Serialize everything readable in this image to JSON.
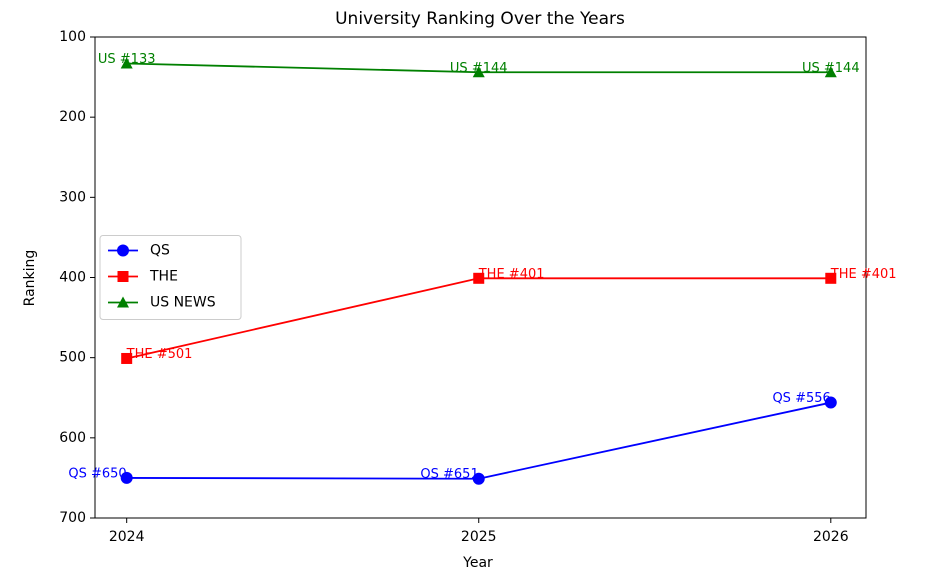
{
  "chart_data": {
    "type": "line",
    "title": "University Ranking Over the Years",
    "x_label": "Year",
    "y_label": "Ranking",
    "x": [
      2024,
      2025,
      2026
    ],
    "series": [
      {
        "name": "QS",
        "color": "#0000ff",
        "marker": "circle",
        "values": [
          650,
          651,
          556
        ],
        "value_labels": [
          "QS #650",
          "QS #651",
          "QS #556"
        ]
      },
      {
        "name": "THE",
        "color": "#ff0000",
        "marker": "square",
        "values": [
          501,
          401,
          401
        ],
        "value_labels": [
          "THE #501",
          "THE #401",
          "THE #401"
        ]
      },
      {
        "name": "US NEWS",
        "color": "#008000",
        "marker": "triangle",
        "values": [
          133,
          144,
          144
        ],
        "value_labels": [
          "US #133",
          "US #144",
          "US #144"
        ]
      }
    ],
    "xlim": [
      2023.91,
      2026.1
    ],
    "xticks": [
      2024,
      2025,
      2026
    ],
    "ylim": [
      700,
      100
    ],
    "yticks": [
      100,
      200,
      300,
      400,
      500,
      600,
      700
    ],
    "legend": "center left",
    "grid": false
  }
}
